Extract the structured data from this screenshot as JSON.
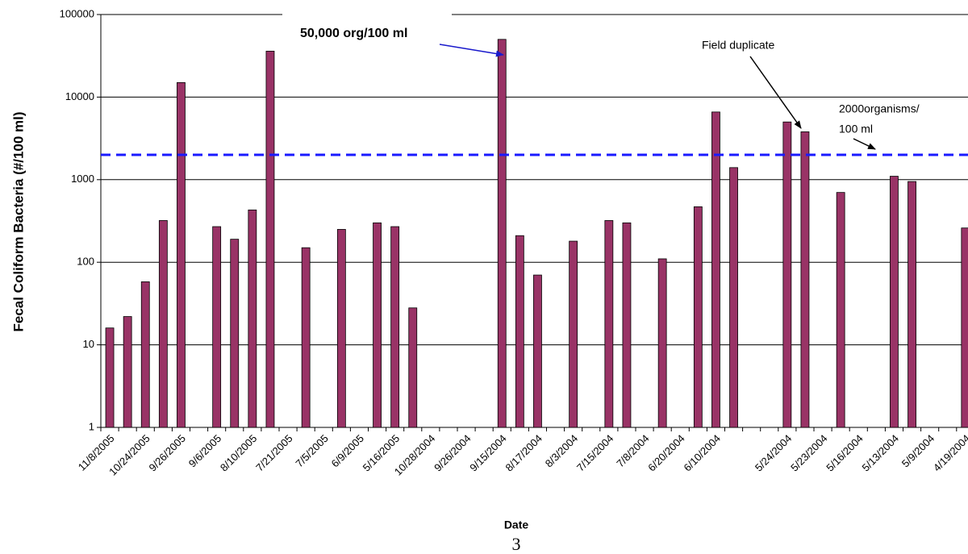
{
  "chart_data": {
    "type": "bar",
    "x_label": "Date",
    "y_label": "Fecal Coliform Bacteria (#/100 ml)",
    "categories": [
      "11/8/2005",
      null,
      "10/24/2005",
      null,
      "9/26/2005",
      null,
      "9/6/2005",
      null,
      "8/10/2005",
      null,
      "7/21/2005",
      null,
      "7/5/2005",
      null,
      "6/9/2005",
      null,
      "5/16/2005",
      null,
      "10/28/2004",
      null,
      "9/26/2004",
      null,
      "9/15/2004",
      null,
      "8/17/2004",
      null,
      "8/3/2004",
      null,
      "7/15/2004",
      null,
      "7/8/2004",
      null,
      "6/20/2004",
      null,
      "6/10/2004",
      null,
      null,
      null,
      "5/24/2004",
      null,
      "5/23/2004",
      null,
      "5/16/2004",
      null,
      "5/13/2004",
      null,
      "5/9/2004",
      null,
      "4/19/2004"
    ],
    "values": [
      16,
      22,
      58,
      320,
      15000,
      null,
      270,
      190,
      430,
      36000,
      null,
      150,
      null,
      250,
      null,
      300,
      270,
      28,
      null,
      null,
      null,
      null,
      50000,
      210,
      70,
      null,
      180,
      null,
      320,
      300,
      null,
      110,
      null,
      470,
      6600,
      1400,
      null,
      null,
      5000,
      3800,
      null,
      700,
      null,
      null,
      1100,
      950,
      null,
      null,
      260
    ],
    "color": "#993366",
    "log_scale": true,
    "ylim": [
      1,
      100000
    ],
    "yticks": [
      1,
      10,
      100,
      1000,
      10000,
      100000
    ],
    "grid": true,
    "reference_line": {
      "value": 2000,
      "color": "#1a1aff"
    },
    "annotations": [
      {
        "text": [
          "50,000 org/100 ml"
        ],
        "color": "#1a1acc"
      },
      {
        "text": [
          "Field duplicate"
        ],
        "color": "#000000"
      },
      {
        "text": [
          "2000organisms/",
          "100 ml"
        ],
        "color": "#000000"
      }
    ]
  },
  "page_number": "3"
}
